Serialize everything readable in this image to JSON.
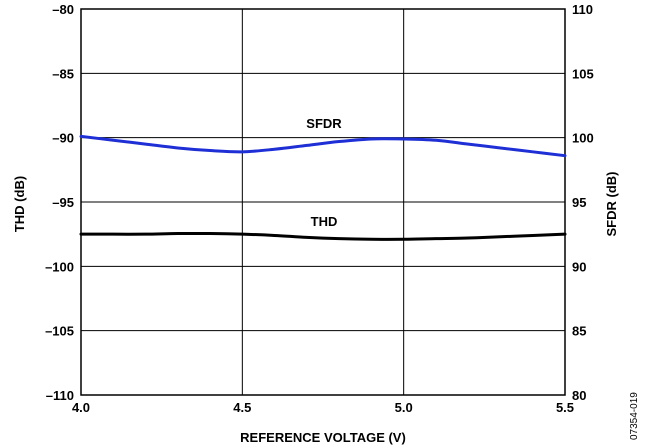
{
  "chart_data": {
    "type": "line",
    "xlabel": "REFERENCE VOLTAGE (V)",
    "ylabel_left": "THD (dB)",
    "ylabel_right": "SFDR (dB)",
    "x_ticks": [
      "4.0",
      "4.5",
      "5.0",
      "5.5"
    ],
    "y_left_ticks": [
      "–80",
      "–85",
      "–90",
      "–95",
      "–100",
      "–105",
      "–110"
    ],
    "y_right_ticks": [
      "110",
      "105",
      "100",
      "95",
      "90",
      "85",
      "80"
    ],
    "xlim": [
      4.0,
      5.5
    ],
    "ylim_left": [
      -110,
      -80
    ],
    "ylim_right": [
      80,
      110
    ],
    "grid": true,
    "figure_id": "07354-019",
    "series": [
      {
        "name": "SFDR",
        "axis": "right",
        "color": "#1f2fd6",
        "x": [
          4.0,
          4.1,
          4.2,
          4.3,
          4.4,
          4.5,
          4.6,
          4.7,
          4.8,
          4.9,
          5.0,
          5.1,
          5.2,
          5.3,
          5.4,
          5.5
        ],
        "y": [
          100.1,
          99.8,
          99.5,
          99.2,
          99.0,
          98.9,
          99.1,
          99.4,
          99.7,
          99.9,
          99.9,
          99.8,
          99.5,
          99.2,
          98.9,
          98.6
        ]
      },
      {
        "name": "THD",
        "axis": "left",
        "color": "#000000",
        "x": [
          4.0,
          4.1,
          4.2,
          4.3,
          4.4,
          4.5,
          4.6,
          4.7,
          4.8,
          4.9,
          5.0,
          5.1,
          5.2,
          5.3,
          5.4,
          5.5
        ],
        "y": [
          -97.5,
          -97.5,
          -97.5,
          -97.45,
          -97.45,
          -97.5,
          -97.6,
          -97.75,
          -97.85,
          -97.9,
          -97.9,
          -97.85,
          -97.8,
          -97.7,
          -97.6,
          -97.5
        ]
      }
    ]
  }
}
